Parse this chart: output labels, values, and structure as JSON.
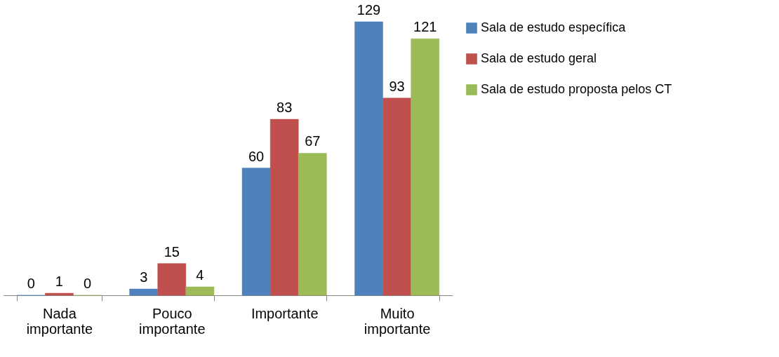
{
  "chart_data": {
    "type": "bar",
    "categories": [
      "Nada importante",
      "Pouco importante",
      "Importante",
      "Muito importante"
    ],
    "series": [
      {
        "name": "Sala de estudo específica",
        "color": "#4f81bd",
        "values": [
          0,
          3,
          60,
          129
        ]
      },
      {
        "name": "Sala de estudo geral",
        "color": "#c0504d",
        "values": [
          1,
          15,
          83,
          93
        ]
      },
      {
        "name": "Sala de estudo proposta pelos CT",
        "color": "#9bbb59",
        "values": [
          0,
          4,
          67,
          121
        ]
      }
    ],
    "data_labels": true,
    "legend": "right",
    "grid": false
  }
}
